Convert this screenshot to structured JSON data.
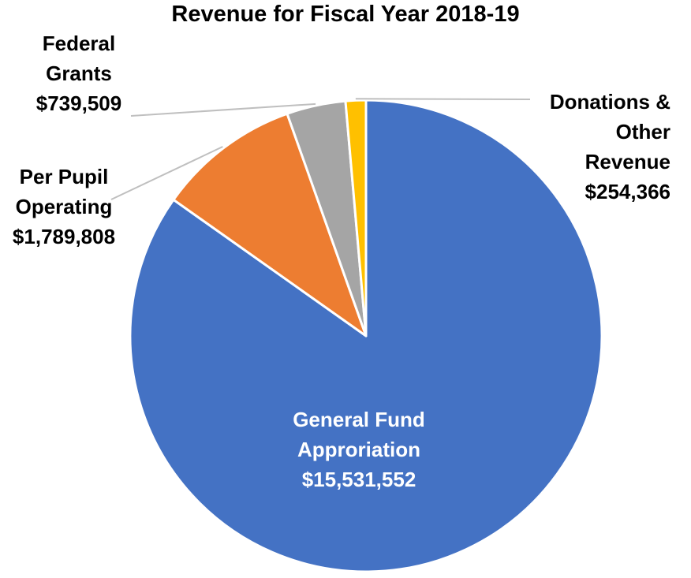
{
  "chart_data": {
    "type": "pie",
    "title": "Revenue for Fiscal Year 2018-19",
    "start_angle": "12 o'clock, clockwise",
    "slices": [
      {
        "label": "General Fund Approriation",
        "label_lines": [
          "General Fund",
          "Approriation"
        ],
        "value": 15531552,
        "value_text": "$15,531,552",
        "color": "#4472C4"
      },
      {
        "label": "Per Pupil Operating",
        "label_lines": [
          "Per Pupil",
          "Operating"
        ],
        "value": 1789808,
        "value_text": "$1,789,808",
        "color": "#ED7D31"
      },
      {
        "label": "Federal Grants",
        "label_lines": [
          "Federal",
          "Grants"
        ],
        "value": 739509,
        "value_text": "$739,509",
        "color": "#A5A5A5"
      },
      {
        "label": "Donations & Other Revenue",
        "label_lines": [
          "Donations &",
          "Other",
          "Revenue"
        ],
        "value": 254366,
        "value_text": "$254,366",
        "color": "#FFC000"
      }
    ],
    "leader_line_color": "#BFBFBF",
    "slice_border_color": "#FFFFFF"
  }
}
